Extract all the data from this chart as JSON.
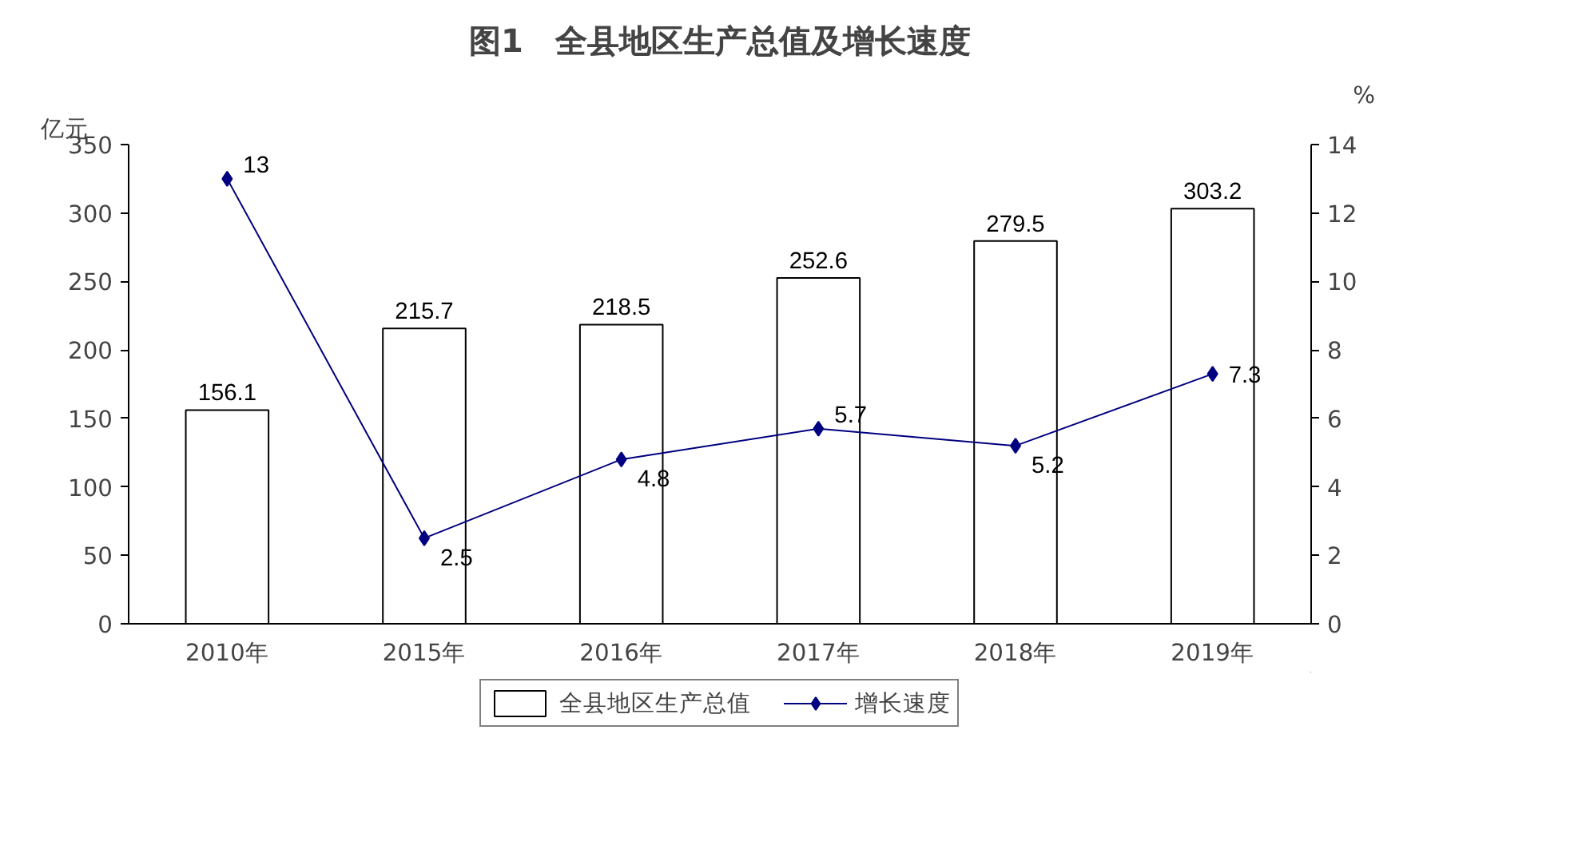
{
  "chart_data": {
    "type": "bar",
    "title": "图1　全县地区生产总值及增长速度",
    "ylabel": "亿元",
    "y2label": "%",
    "categories": [
      "2010年",
      "2015年",
      "2016年",
      "2017年",
      "2018年",
      "2019年"
    ],
    "series": [
      {
        "name": "全县地区生产总值",
        "color": "#ffffff",
        "values": [
          156.1,
          215.7,
          218.5,
          252.6,
          279.5,
          303.2
        ]
      },
      {
        "name": "增长速度",
        "type": "line",
        "axis": "y2",
        "color": "#000080",
        "marker": "diamond",
        "values": [
          13,
          2.5,
          4.8,
          5.7,
          5.2,
          7.3
        ]
      }
    ],
    "ylim": [
      0,
      350
    ],
    "yticks": [
      0,
      50,
      100,
      150,
      200,
      250,
      300,
      350
    ],
    "y2lim": [
      0,
      14
    ],
    "y2ticks": [
      0,
      2,
      4,
      6,
      8,
      10,
      12,
      14
    ],
    "data_labels": true,
    "grid": false,
    "legend": "bottom"
  }
}
